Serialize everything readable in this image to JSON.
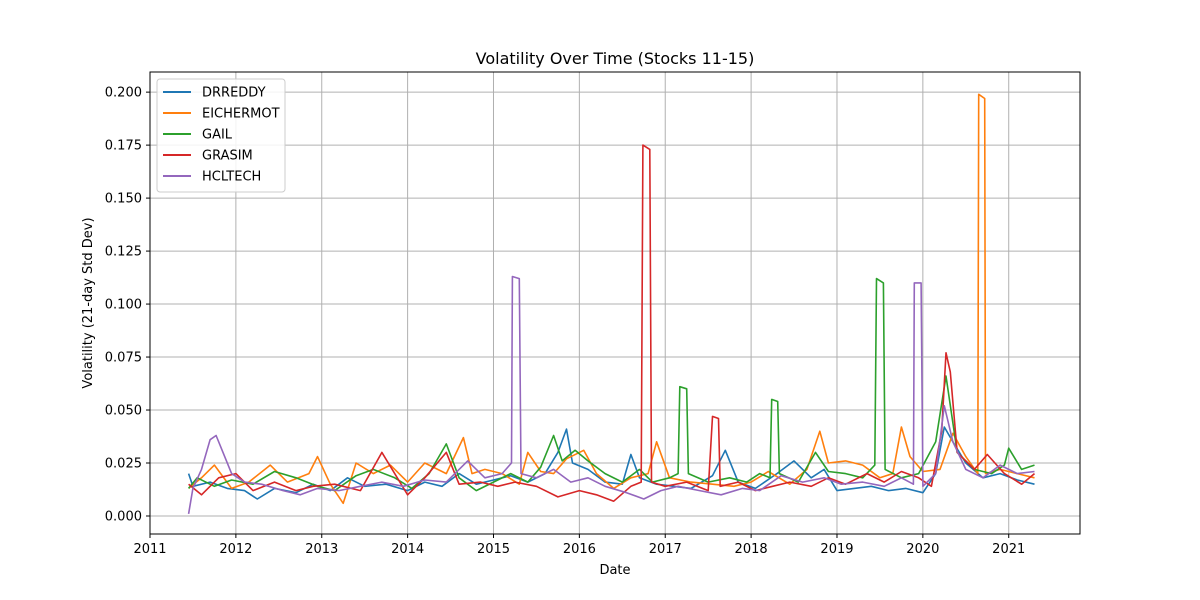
{
  "chart_data": {
    "type": "line",
    "title": "Volatility Over Time (Stocks 11-15)",
    "xlabel": "Date",
    "ylabel": "Volatility (21-day Std Dev)",
    "xlim": [
      2011.0,
      2021.83
    ],
    "ylim": [
      -0.0085,
      0.2095
    ],
    "x_ticks": [
      2011,
      2012,
      2013,
      2014,
      2015,
      2016,
      2017,
      2018,
      2019,
      2020,
      2021
    ],
    "x_tick_labels": [
      "2011",
      "2012",
      "2013",
      "2014",
      "2015",
      "2016",
      "2017",
      "2018",
      "2019",
      "2020",
      "2021"
    ],
    "y_ticks": [
      0.0,
      0.025,
      0.05,
      0.075,
      0.1,
      0.125,
      0.15,
      0.175,
      0.2
    ],
    "y_tick_labels": [
      "0.000",
      "0.025",
      "0.050",
      "0.075",
      "0.100",
      "0.125",
      "0.150",
      "0.175",
      "0.200"
    ],
    "grid": true,
    "legend_position": "top-left",
    "series": [
      {
        "name": "DRREDDY",
        "color": "#1f77b4",
        "points": [
          [
            2011.45,
            0.02
          ],
          [
            2011.5,
            0.014
          ],
          [
            2011.7,
            0.016
          ],
          [
            2011.9,
            0.013
          ],
          [
            2012.1,
            0.012
          ],
          [
            2012.25,
            0.008
          ],
          [
            2012.45,
            0.013
          ],
          [
            2012.7,
            0.011
          ],
          [
            2012.9,
            0.015
          ],
          [
            2013.1,
            0.012
          ],
          [
            2013.3,
            0.018
          ],
          [
            2013.5,
            0.014
          ],
          [
            2013.75,
            0.015
          ],
          [
            2014.0,
            0.012
          ],
          [
            2014.2,
            0.016
          ],
          [
            2014.4,
            0.014
          ],
          [
            2014.6,
            0.02
          ],
          [
            2014.8,
            0.015
          ],
          [
            2015.0,
            0.017
          ],
          [
            2015.2,
            0.019
          ],
          [
            2015.4,
            0.016
          ],
          [
            2015.6,
            0.02
          ],
          [
            2015.75,
            0.03
          ],
          [
            2015.85,
            0.041
          ],
          [
            2015.92,
            0.025
          ],
          [
            2016.1,
            0.022
          ],
          [
            2016.3,
            0.016
          ],
          [
            2016.5,
            0.015
          ],
          [
            2016.6,
            0.029
          ],
          [
            2016.7,
            0.018
          ],
          [
            2016.9,
            0.015
          ],
          [
            2017.1,
            0.014
          ],
          [
            2017.3,
            0.013
          ],
          [
            2017.55,
            0.019
          ],
          [
            2017.7,
            0.031
          ],
          [
            2017.85,
            0.016
          ],
          [
            2018.05,
            0.013
          ],
          [
            2018.3,
            0.02
          ],
          [
            2018.5,
            0.026
          ],
          [
            2018.7,
            0.018
          ],
          [
            2018.85,
            0.022
          ],
          [
            2019.0,
            0.012
          ],
          [
            2019.2,
            0.013
          ],
          [
            2019.4,
            0.014
          ],
          [
            2019.6,
            0.012
          ],
          [
            2019.8,
            0.013
          ],
          [
            2020.0,
            0.011
          ],
          [
            2020.15,
            0.02
          ],
          [
            2020.25,
            0.042
          ],
          [
            2020.35,
            0.035
          ],
          [
            2020.5,
            0.025
          ],
          [
            2020.7,
            0.018
          ],
          [
            2020.9,
            0.02
          ],
          [
            2021.1,
            0.017
          ],
          [
            2021.3,
            0.015
          ]
        ]
      },
      {
        "name": "EICHERMOT",
        "color": "#ff7f0e",
        "points": [
          [
            2011.45,
            0.013
          ],
          [
            2011.6,
            0.018
          ],
          [
            2011.75,
            0.024
          ],
          [
            2011.95,
            0.013
          ],
          [
            2012.15,
            0.016
          ],
          [
            2012.4,
            0.024
          ],
          [
            2012.6,
            0.016
          ],
          [
            2012.85,
            0.02
          ],
          [
            2012.95,
            0.028
          ],
          [
            2013.1,
            0.015
          ],
          [
            2013.25,
            0.006
          ],
          [
            2013.4,
            0.025
          ],
          [
            2013.6,
            0.02
          ],
          [
            2013.8,
            0.024
          ],
          [
            2014.0,
            0.016
          ],
          [
            2014.2,
            0.025
          ],
          [
            2014.45,
            0.02
          ],
          [
            2014.65,
            0.037
          ],
          [
            2014.75,
            0.02
          ],
          [
            2014.9,
            0.022
          ],
          [
            2015.1,
            0.02
          ],
          [
            2015.3,
            0.015
          ],
          [
            2015.4,
            0.03
          ],
          [
            2015.55,
            0.021
          ],
          [
            2015.7,
            0.02
          ],
          [
            2015.85,
            0.027
          ],
          [
            2016.05,
            0.031
          ],
          [
            2016.2,
            0.02
          ],
          [
            2016.4,
            0.013
          ],
          [
            2016.6,
            0.018
          ],
          [
            2016.8,
            0.02
          ],
          [
            2016.9,
            0.035
          ],
          [
            2017.05,
            0.018
          ],
          [
            2017.3,
            0.016
          ],
          [
            2017.55,
            0.015
          ],
          [
            2017.8,
            0.014
          ],
          [
            2018.0,
            0.016
          ],
          [
            2018.2,
            0.021
          ],
          [
            2018.45,
            0.015
          ],
          [
            2018.65,
            0.022
          ],
          [
            2018.8,
            0.04
          ],
          [
            2018.9,
            0.025
          ],
          [
            2019.1,
            0.026
          ],
          [
            2019.3,
            0.024
          ],
          [
            2019.5,
            0.018
          ],
          [
            2019.65,
            0.02
          ],
          [
            2019.75,
            0.042
          ],
          [
            2019.85,
            0.028
          ],
          [
            2020.0,
            0.021
          ],
          [
            2020.2,
            0.022
          ],
          [
            2020.35,
            0.039
          ],
          [
            2020.5,
            0.028
          ],
          [
            2020.64,
            0.02
          ],
          [
            2020.65,
            0.199
          ],
          [
            2020.72,
            0.197
          ],
          [
            2020.73,
            0.02
          ],
          [
            2020.9,
            0.022
          ],
          [
            2021.1,
            0.02
          ],
          [
            2021.3,
            0.018
          ]
        ]
      },
      {
        "name": "GAIL",
        "color": "#2ca02c",
        "points": [
          [
            2011.45,
            0.013
          ],
          [
            2011.55,
            0.018
          ],
          [
            2011.75,
            0.014
          ],
          [
            2011.95,
            0.017
          ],
          [
            2012.2,
            0.015
          ],
          [
            2012.45,
            0.021
          ],
          [
            2012.7,
            0.018
          ],
          [
            2012.95,
            0.014
          ],
          [
            2013.15,
            0.012
          ],
          [
            2013.4,
            0.019
          ],
          [
            2013.6,
            0.022
          ],
          [
            2013.85,
            0.018
          ],
          [
            2014.05,
            0.013
          ],
          [
            2014.25,
            0.02
          ],
          [
            2014.45,
            0.034
          ],
          [
            2014.6,
            0.018
          ],
          [
            2014.8,
            0.012
          ],
          [
            2015.0,
            0.016
          ],
          [
            2015.2,
            0.02
          ],
          [
            2015.4,
            0.016
          ],
          [
            2015.55,
            0.023
          ],
          [
            2015.7,
            0.038
          ],
          [
            2015.8,
            0.026
          ],
          [
            2015.95,
            0.031
          ],
          [
            2016.1,
            0.026
          ],
          [
            2016.3,
            0.02
          ],
          [
            2016.5,
            0.016
          ],
          [
            2016.7,
            0.022
          ],
          [
            2016.85,
            0.016
          ],
          [
            2017.05,
            0.018
          ],
          [
            2017.15,
            0.02
          ],
          [
            2017.17,
            0.061
          ],
          [
            2017.25,
            0.06
          ],
          [
            2017.27,
            0.02
          ],
          [
            2017.5,
            0.016
          ],
          [
            2017.75,
            0.018
          ],
          [
            2017.95,
            0.016
          ],
          [
            2018.1,
            0.02
          ],
          [
            2018.22,
            0.018
          ],
          [
            2018.24,
            0.055
          ],
          [
            2018.31,
            0.054
          ],
          [
            2018.33,
            0.02
          ],
          [
            2018.55,
            0.016
          ],
          [
            2018.75,
            0.03
          ],
          [
            2018.9,
            0.021
          ],
          [
            2019.1,
            0.02
          ],
          [
            2019.3,
            0.018
          ],
          [
            2019.44,
            0.024
          ],
          [
            2019.46,
            0.112
          ],
          [
            2019.54,
            0.11
          ],
          [
            2019.56,
            0.022
          ],
          [
            2019.75,
            0.018
          ],
          [
            2019.95,
            0.02
          ],
          [
            2020.15,
            0.035
          ],
          [
            2020.27,
            0.066
          ],
          [
            2020.4,
            0.03
          ],
          [
            2020.6,
            0.022
          ],
          [
            2020.8,
            0.02
          ],
          [
            2020.95,
            0.024
          ],
          [
            2021.0,
            0.032
          ],
          [
            2021.15,
            0.022
          ],
          [
            2021.3,
            0.024
          ]
        ]
      },
      {
        "name": "GRASIM",
        "color": "#d62728",
        "points": [
          [
            2011.45,
            0.015
          ],
          [
            2011.6,
            0.01
          ],
          [
            2011.8,
            0.018
          ],
          [
            2012.0,
            0.02
          ],
          [
            2012.2,
            0.012
          ],
          [
            2012.45,
            0.016
          ],
          [
            2012.7,
            0.012
          ],
          [
            2012.9,
            0.014
          ],
          [
            2013.15,
            0.015
          ],
          [
            2013.45,
            0.012
          ],
          [
            2013.7,
            0.03
          ],
          [
            2013.85,
            0.02
          ],
          [
            2014.0,
            0.01
          ],
          [
            2014.2,
            0.018
          ],
          [
            2014.45,
            0.03
          ],
          [
            2014.6,
            0.015
          ],
          [
            2014.85,
            0.016
          ],
          [
            2015.05,
            0.014
          ],
          [
            2015.25,
            0.016
          ],
          [
            2015.5,
            0.014
          ],
          [
            2015.75,
            0.009
          ],
          [
            2016.0,
            0.012
          ],
          [
            2016.2,
            0.01
          ],
          [
            2016.4,
            0.007
          ],
          [
            2016.6,
            0.014
          ],
          [
            2016.72,
            0.016
          ],
          [
            2016.74,
            0.175
          ],
          [
            2016.82,
            0.173
          ],
          [
            2016.84,
            0.016
          ],
          [
            2017.0,
            0.014
          ],
          [
            2017.25,
            0.016
          ],
          [
            2017.5,
            0.012
          ],
          [
            2017.55,
            0.047
          ],
          [
            2017.62,
            0.046
          ],
          [
            2017.64,
            0.014
          ],
          [
            2017.85,
            0.016
          ],
          [
            2018.05,
            0.012
          ],
          [
            2018.25,
            0.014
          ],
          [
            2018.45,
            0.016
          ],
          [
            2018.7,
            0.014
          ],
          [
            2018.9,
            0.018
          ],
          [
            2019.1,
            0.015
          ],
          [
            2019.35,
            0.02
          ],
          [
            2019.55,
            0.016
          ],
          [
            2019.75,
            0.021
          ],
          [
            2019.95,
            0.018
          ],
          [
            2020.1,
            0.014
          ],
          [
            2020.22,
            0.04
          ],
          [
            2020.27,
            0.077
          ],
          [
            2020.32,
            0.068
          ],
          [
            2020.4,
            0.03
          ],
          [
            2020.6,
            0.022
          ],
          [
            2020.75,
            0.029
          ],
          [
            2020.95,
            0.02
          ],
          [
            2021.15,
            0.015
          ],
          [
            2021.3,
            0.02
          ]
        ]
      },
      {
        "name": "HCLTECH",
        "color": "#9467bd",
        "points": [
          [
            2011.45,
            0.001
          ],
          [
            2011.5,
            0.013
          ],
          [
            2011.6,
            0.022
          ],
          [
            2011.7,
            0.036
          ],
          [
            2011.77,
            0.038
          ],
          [
            2011.85,
            0.03
          ],
          [
            2011.95,
            0.02
          ],
          [
            2012.1,
            0.016
          ],
          [
            2012.3,
            0.015
          ],
          [
            2012.55,
            0.012
          ],
          [
            2012.75,
            0.01
          ],
          [
            2012.95,
            0.013
          ],
          [
            2013.2,
            0.012
          ],
          [
            2013.45,
            0.014
          ],
          [
            2013.7,
            0.016
          ],
          [
            2013.95,
            0.014
          ],
          [
            2014.2,
            0.017
          ],
          [
            2014.45,
            0.016
          ],
          [
            2014.7,
            0.026
          ],
          [
            2014.9,
            0.018
          ],
          [
            2015.1,
            0.02
          ],
          [
            2015.21,
            0.025
          ],
          [
            2015.22,
            0.113
          ],
          [
            2015.3,
            0.112
          ],
          [
            2015.32,
            0.02
          ],
          [
            2015.5,
            0.018
          ],
          [
            2015.7,
            0.022
          ],
          [
            2015.9,
            0.016
          ],
          [
            2016.1,
            0.018
          ],
          [
            2016.3,
            0.014
          ],
          [
            2016.55,
            0.011
          ],
          [
            2016.75,
            0.008
          ],
          [
            2016.95,
            0.012
          ],
          [
            2017.15,
            0.014
          ],
          [
            2017.4,
            0.012
          ],
          [
            2017.65,
            0.01
          ],
          [
            2017.9,
            0.013
          ],
          [
            2018.1,
            0.012
          ],
          [
            2018.35,
            0.019
          ],
          [
            2018.6,
            0.016
          ],
          [
            2018.85,
            0.018
          ],
          [
            2019.05,
            0.015
          ],
          [
            2019.3,
            0.016
          ],
          [
            2019.55,
            0.014
          ],
          [
            2019.75,
            0.018
          ],
          [
            2019.89,
            0.015
          ],
          [
            2019.9,
            0.11
          ],
          [
            2019.98,
            0.11
          ],
          [
            2020.0,
            0.014
          ],
          [
            2020.15,
            0.02
          ],
          [
            2020.25,
            0.052
          ],
          [
            2020.35,
            0.035
          ],
          [
            2020.5,
            0.022
          ],
          [
            2020.7,
            0.018
          ],
          [
            2020.9,
            0.024
          ],
          [
            2021.1,
            0.02
          ],
          [
            2021.3,
            0.021
          ]
        ]
      }
    ]
  }
}
